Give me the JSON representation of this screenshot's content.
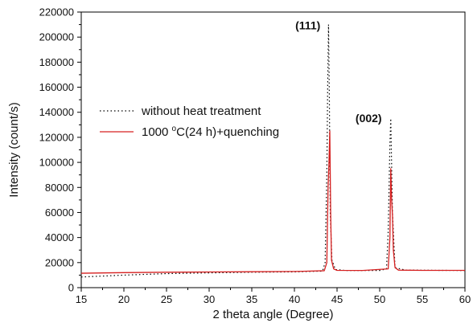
{
  "chart_data": {
    "type": "line",
    "xlabel": "2 theta angle (Degree)",
    "ylabel": "Intensity (count/s)",
    "xlim": [
      15,
      60
    ],
    "ylim": [
      0,
      220000
    ],
    "x_ticks": [
      15,
      20,
      25,
      30,
      35,
      40,
      45,
      50,
      55,
      60
    ],
    "y_ticks": [
      0,
      20000,
      40000,
      60000,
      80000,
      100000,
      120000,
      140000,
      160000,
      180000,
      200000,
      220000
    ],
    "legend_position": "center-left",
    "grid": false,
    "annotations": [
      {
        "text": "(111)",
        "x": 43.8,
        "y": 210000
      },
      {
        "text": "(002)",
        "x": 51.0,
        "y": 136000
      }
    ],
    "series": [
      {
        "name": "without heat treatment",
        "style": "dotted",
        "color": "#000000",
        "x": [
          15,
          20,
          25,
          30,
          35,
          40,
          43.3,
          43.6,
          43.8,
          43.9,
          44.0,
          44.1,
          44.2,
          44.4,
          44.8,
          46,
          50,
          50.8,
          51.0,
          51.2,
          51.3,
          51.5,
          51.8,
          53,
          57,
          60
        ],
        "y": [
          8500,
          10000,
          11200,
          11800,
          12300,
          12600,
          13200,
          20000,
          90000,
          160000,
          210000,
          150000,
          60000,
          22000,
          14500,
          13700,
          13700,
          15000,
          45000,
          115000,
          135000,
          60000,
          16000,
          14000,
          13800,
          13700
        ]
      },
      {
        "name": "1000 °C(24 h)+quenching",
        "style": "solid",
        "color": "#d62020",
        "x": [
          15,
          20,
          25,
          30,
          35,
          40,
          43.5,
          43.8,
          43.95,
          44.05,
          44.15,
          44.25,
          44.35,
          44.6,
          45,
          48,
          51.0,
          51.2,
          51.3,
          51.4,
          51.5,
          51.6,
          51.8,
          52.2,
          55,
          60
        ],
        "y": [
          11500,
          12000,
          12300,
          12500,
          12700,
          12900,
          13500,
          20000,
          80000,
          100000,
          125000,
          60000,
          22000,
          15000,
          13800,
          13700,
          15000,
          40000,
          95000,
          70000,
          58000,
          30000,
          16000,
          14000,
          13800,
          13800
        ]
      }
    ]
  }
}
